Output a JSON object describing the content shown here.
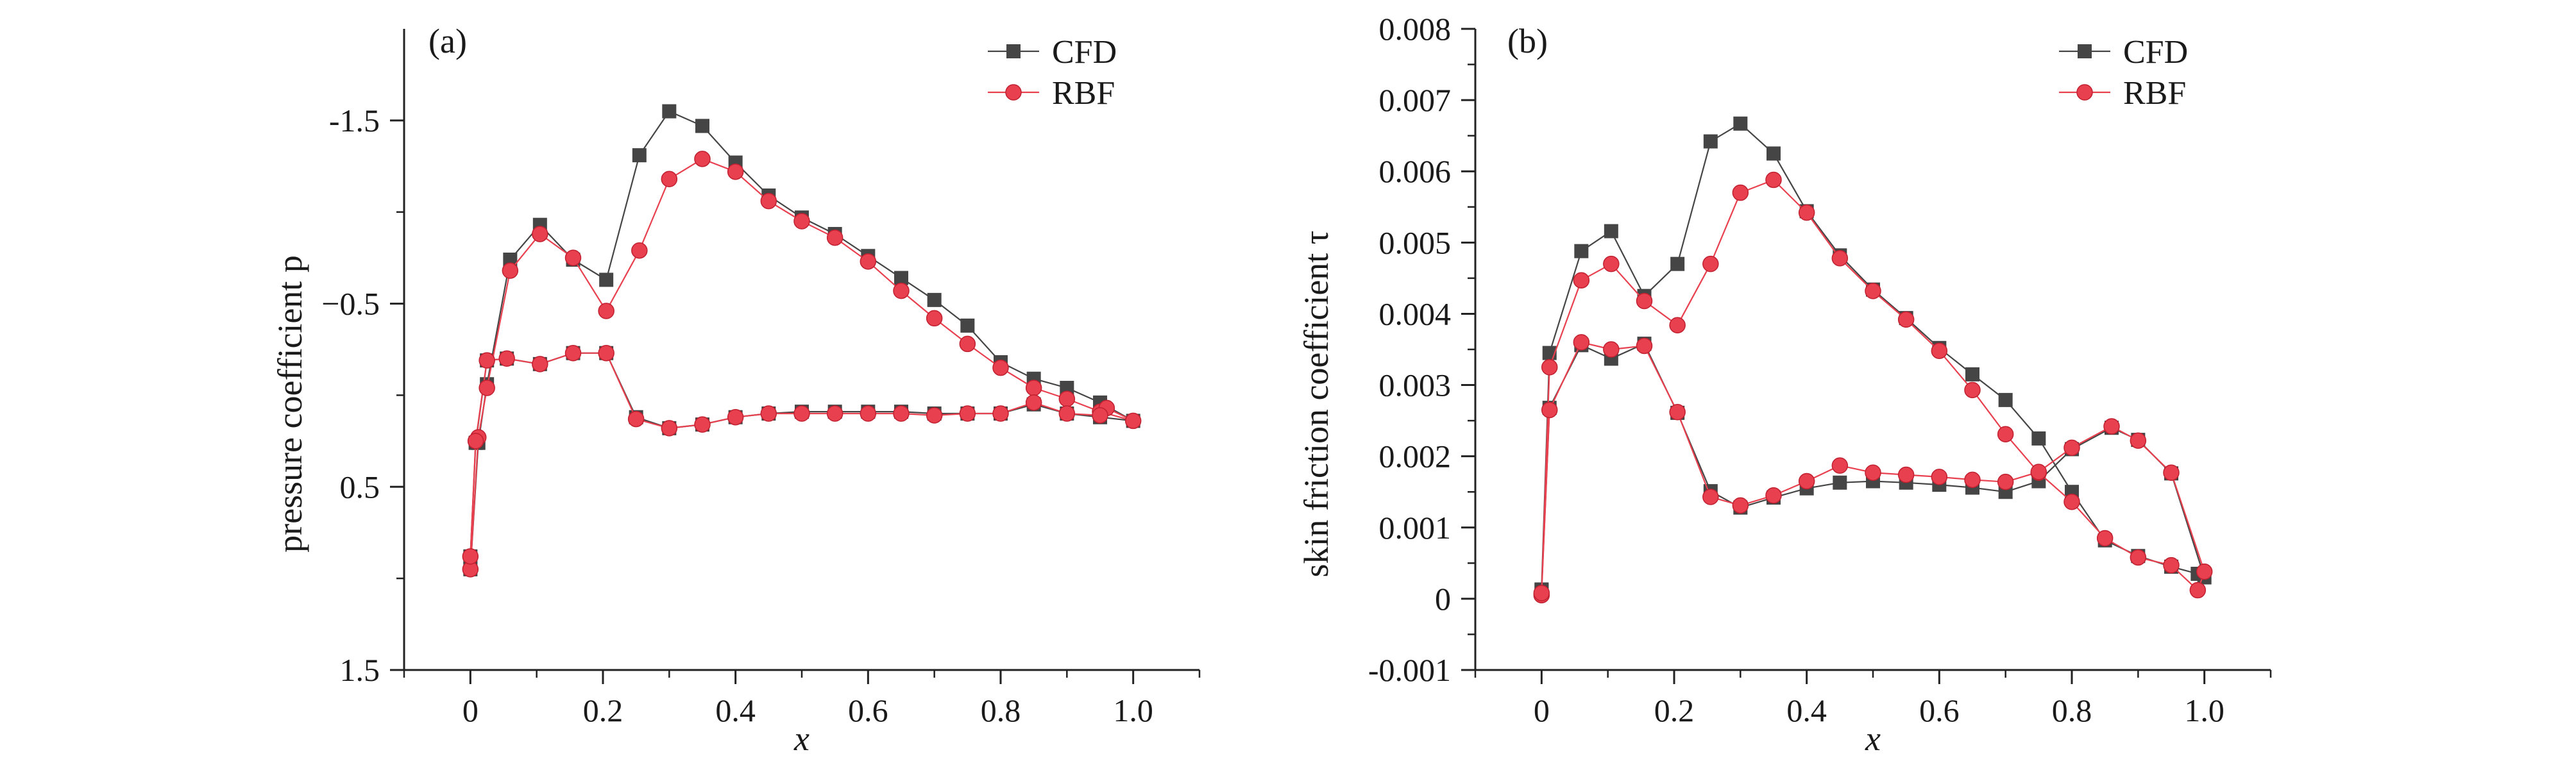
{
  "chart_data": [
    {
      "type": "line",
      "panel_label": "(a)",
      "xlabel": "x",
      "ylabel": "pressure coefficient p",
      "xlim": [
        -0.1,
        1.1
      ],
      "ylim": [
        -2.0,
        1.5
      ],
      "y_inverted": true,
      "xticks": [
        0,
        0.2,
        0.4,
        0.6,
        0.8,
        1.0
      ],
      "xtick_labels": [
        "0",
        "0.2",
        "0.4",
        "0.6",
        "0.8",
        "1.0"
      ],
      "yticks": [
        -1.5,
        -0.5,
        0.5,
        1.5
      ],
      "ytick_labels": [
        "-1.5",
        "−0.5",
        "0.5",
        "1.5"
      ],
      "grid": false,
      "legend": "top-right",
      "legend_entries": [
        "CFD",
        "RBF"
      ],
      "series": [
        {
          "name": "CFD",
          "color": "#454545",
          "marker": "square",
          "points": [
            [
              0,
              0.95
            ],
            [
              0.012,
              0.26
            ],
            [
              0.025,
              -0.06
            ],
            [
              0.06,
              -0.74
            ],
            [
              0.105,
              -0.93
            ],
            [
              0.155,
              -0.74
            ],
            [
              0.205,
              -0.63
            ],
            [
              0.255,
              -1.31
            ],
            [
              0.3,
              -1.55
            ],
            [
              0.35,
              -1.47
            ],
            [
              0.4,
              -1.27
            ],
            [
              0.45,
              -1.09
            ],
            [
              0.5,
              -0.97
            ],
            [
              0.55,
              -0.88
            ],
            [
              0.6,
              -0.76
            ],
            [
              0.65,
              -0.64
            ],
            [
              0.7,
              -0.52
            ],
            [
              0.75,
              -0.38
            ],
            [
              0.8,
              -0.18
            ],
            [
              0.85,
              -0.09
            ],
            [
              0.9,
              -0.04
            ],
            [
              0.95,
              0.04
            ],
            [
              1.0,
              0.14
            ],
            [
              0.95,
              0.12
            ],
            [
              0.9,
              0.1
            ],
            [
              0.85,
              0.05
            ],
            [
              0.8,
              0.1
            ],
            [
              0.75,
              0.1
            ],
            [
              0.7,
              0.1
            ],
            [
              0.65,
              0.09
            ],
            [
              0.6,
              0.09
            ],
            [
              0.55,
              0.09
            ],
            [
              0.5,
              0.09
            ],
            [
              0.45,
              0.1
            ],
            [
              0.4,
              0.12
            ],
            [
              0.35,
              0.16
            ],
            [
              0.3,
              0.18
            ],
            [
              0.25,
              0.12
            ],
            [
              0.205,
              -0.23
            ],
            [
              0.155,
              -0.23
            ],
            [
              0.105,
              -0.17
            ],
            [
              0.055,
              -0.2
            ],
            [
              0.025,
              -0.19
            ],
            [
              0.008,
              0.26
            ],
            [
              0,
              0.88
            ]
          ]
        },
        {
          "name": "RBF",
          "color": "#e8404f",
          "marker": "circle",
          "points": [
            [
              0,
              0.95
            ],
            [
              0.012,
              0.23
            ],
            [
              0.025,
              -0.04
            ],
            [
              0.06,
              -0.68
            ],
            [
              0.105,
              -0.88
            ],
            [
              0.155,
              -0.75
            ],
            [
              0.205,
              -0.46
            ],
            [
              0.255,
              -0.79
            ],
            [
              0.3,
              -1.18
            ],
            [
              0.35,
              -1.29
            ],
            [
              0.4,
              -1.22
            ],
            [
              0.45,
              -1.06
            ],
            [
              0.5,
              -0.95
            ],
            [
              0.55,
              -0.86
            ],
            [
              0.6,
              -0.73
            ],
            [
              0.65,
              -0.57
            ],
            [
              0.7,
              -0.42
            ],
            [
              0.75,
              -0.28
            ],
            [
              0.8,
              -0.15
            ],
            [
              0.85,
              -0.04
            ],
            [
              0.9,
              0.02
            ],
            [
              0.95,
              0.09
            ],
            [
              1.0,
              0.14
            ],
            [
              0.96,
              0.07
            ],
            [
              0.95,
              0.11
            ],
            [
              0.9,
              0.1
            ],
            [
              0.85,
              0.04
            ],
            [
              0.8,
              0.1
            ],
            [
              0.75,
              0.1
            ],
            [
              0.7,
              0.11
            ],
            [
              0.65,
              0.1
            ],
            [
              0.6,
              0.1
            ],
            [
              0.55,
              0.1
            ],
            [
              0.5,
              0.1
            ],
            [
              0.45,
              0.1
            ],
            [
              0.4,
              0.12
            ],
            [
              0.35,
              0.16
            ],
            [
              0.3,
              0.18
            ],
            [
              0.25,
              0.13
            ],
            [
              0.205,
              -0.23
            ],
            [
              0.155,
              -0.23
            ],
            [
              0.105,
              -0.17
            ],
            [
              0.055,
              -0.2
            ],
            [
              0.025,
              -0.19
            ],
            [
              0.008,
              0.25
            ],
            [
              0,
              0.88
            ]
          ]
        }
      ]
    },
    {
      "type": "line",
      "panel_label": "(b)",
      "xlabel": "x",
      "ylabel": "skin friction coefficient τ",
      "xlim": [
        -0.1,
        1.1
      ],
      "ylim": [
        -0.001,
        0.008
      ],
      "y_inverted": false,
      "xticks": [
        0,
        0.2,
        0.4,
        0.6,
        0.8,
        1.0
      ],
      "xtick_labels": [
        "0",
        "0.2",
        "0.4",
        "0.6",
        "0.8",
        "1.0"
      ],
      "yticks": [
        -0.001,
        0,
        0.001,
        0.002,
        0.003,
        0.004,
        0.005,
        0.006,
        0.007,
        0.008
      ],
      "ytick_labels": [
        "-0.001",
        "0",
        "0.001",
        "0.002",
        "0.003",
        "0.004",
        "0.005",
        "0.006",
        "0.007",
        "0.008"
      ],
      "grid": false,
      "legend": "top-right",
      "legend_entries": [
        "CFD",
        "RBF"
      ],
      "series": [
        {
          "name": "CFD",
          "color": "#454545",
          "marker": "square",
          "points": [
            [
              0,
              0.00013
            ],
            [
              0.012,
              0.00345
            ],
            [
              0.06,
              0.00488
            ],
            [
              0.105,
              0.00516
            ],
            [
              0.155,
              0.00425
            ],
            [
              0.205,
              0.0047
            ],
            [
              0.255,
              0.00642
            ],
            [
              0.3,
              0.00667
            ],
            [
              0.35,
              0.00625
            ],
            [
              0.4,
              0.00544
            ],
            [
              0.45,
              0.00482
            ],
            [
              0.5,
              0.00434
            ],
            [
              0.55,
              0.00394
            ],
            [
              0.6,
              0.00352
            ],
            [
              0.65,
              0.00315
            ],
            [
              0.7,
              0.00279
            ],
            [
              0.75,
              0.00225
            ],
            [
              0.8,
              0.0015
            ],
            [
              0.85,
              0.00082
            ],
            [
              0.9,
              0.0006
            ],
            [
              0.95,
              0.00045
            ],
            [
              0.99,
              0.00035
            ],
            [
              1.0,
              0.0003
            ],
            [
              0.95,
              0.00176
            ],
            [
              0.9,
              0.00223
            ],
            [
              0.86,
              0.0024
            ],
            [
              0.8,
              0.0021
            ],
            [
              0.75,
              0.00165
            ],
            [
              0.7,
              0.0015
            ],
            [
              0.65,
              0.00156
            ],
            [
              0.6,
              0.0016
            ],
            [
              0.55,
              0.00163
            ],
            [
              0.5,
              0.00165
            ],
            [
              0.45,
              0.00163
            ],
            [
              0.4,
              0.00155
            ],
            [
              0.35,
              0.00142
            ],
            [
              0.3,
              0.00128
            ],
            [
              0.255,
              0.00151
            ],
            [
              0.205,
              0.00261
            ],
            [
              0.155,
              0.00358
            ],
            [
              0.105,
              0.00337
            ],
            [
              0.06,
              0.00356
            ],
            [
              0.012,
              0.00268
            ],
            [
              0,
              0.00012
            ]
          ]
        },
        {
          "name": "RBF",
          "color": "#e8404f",
          "marker": "circle",
          "points": [
            [
              0,
              5e-05
            ],
            [
              0.012,
              0.00325
            ],
            [
              0.06,
              0.00447
            ],
            [
              0.105,
              0.0047
            ],
            [
              0.155,
              0.00418
            ],
            [
              0.205,
              0.00384
            ],
            [
              0.255,
              0.0047
            ],
            [
              0.3,
              0.0057
            ],
            [
              0.35,
              0.00588
            ],
            [
              0.4,
              0.00542
            ],
            [
              0.45,
              0.00478
            ],
            [
              0.5,
              0.00432
            ],
            [
              0.55,
              0.00392
            ],
            [
              0.6,
              0.00348
            ],
            [
              0.65,
              0.00293
            ],
            [
              0.7,
              0.00231
            ],
            [
              0.75,
              0.00177
            ],
            [
              0.8,
              0.00136
            ],
            [
              0.85,
              0.00085
            ],
            [
              0.9,
              0.00058
            ],
            [
              0.95,
              0.00047
            ],
            [
              0.99,
              0.00012
            ],
            [
              1.0,
              0.00038
            ],
            [
              0.95,
              0.00177
            ],
            [
              0.9,
              0.00222
            ],
            [
              0.86,
              0.00242
            ],
            [
              0.8,
              0.00212
            ],
            [
              0.75,
              0.00178
            ],
            [
              0.7,
              0.00164
            ],
            [
              0.65,
              0.00167
            ],
            [
              0.6,
              0.00171
            ],
            [
              0.55,
              0.00174
            ],
            [
              0.5,
              0.00177
            ],
            [
              0.45,
              0.00187
            ],
            [
              0.4,
              0.00165
            ],
            [
              0.35,
              0.00145
            ],
            [
              0.3,
              0.00131
            ],
            [
              0.255,
              0.00143
            ],
            [
              0.205,
              0.00262
            ],
            [
              0.155,
              0.00355
            ],
            [
              0.105,
              0.0035
            ],
            [
              0.06,
              0.0036
            ],
            [
              0.012,
              0.00265
            ],
            [
              0,
              8e-05
            ]
          ]
        }
      ]
    }
  ]
}
